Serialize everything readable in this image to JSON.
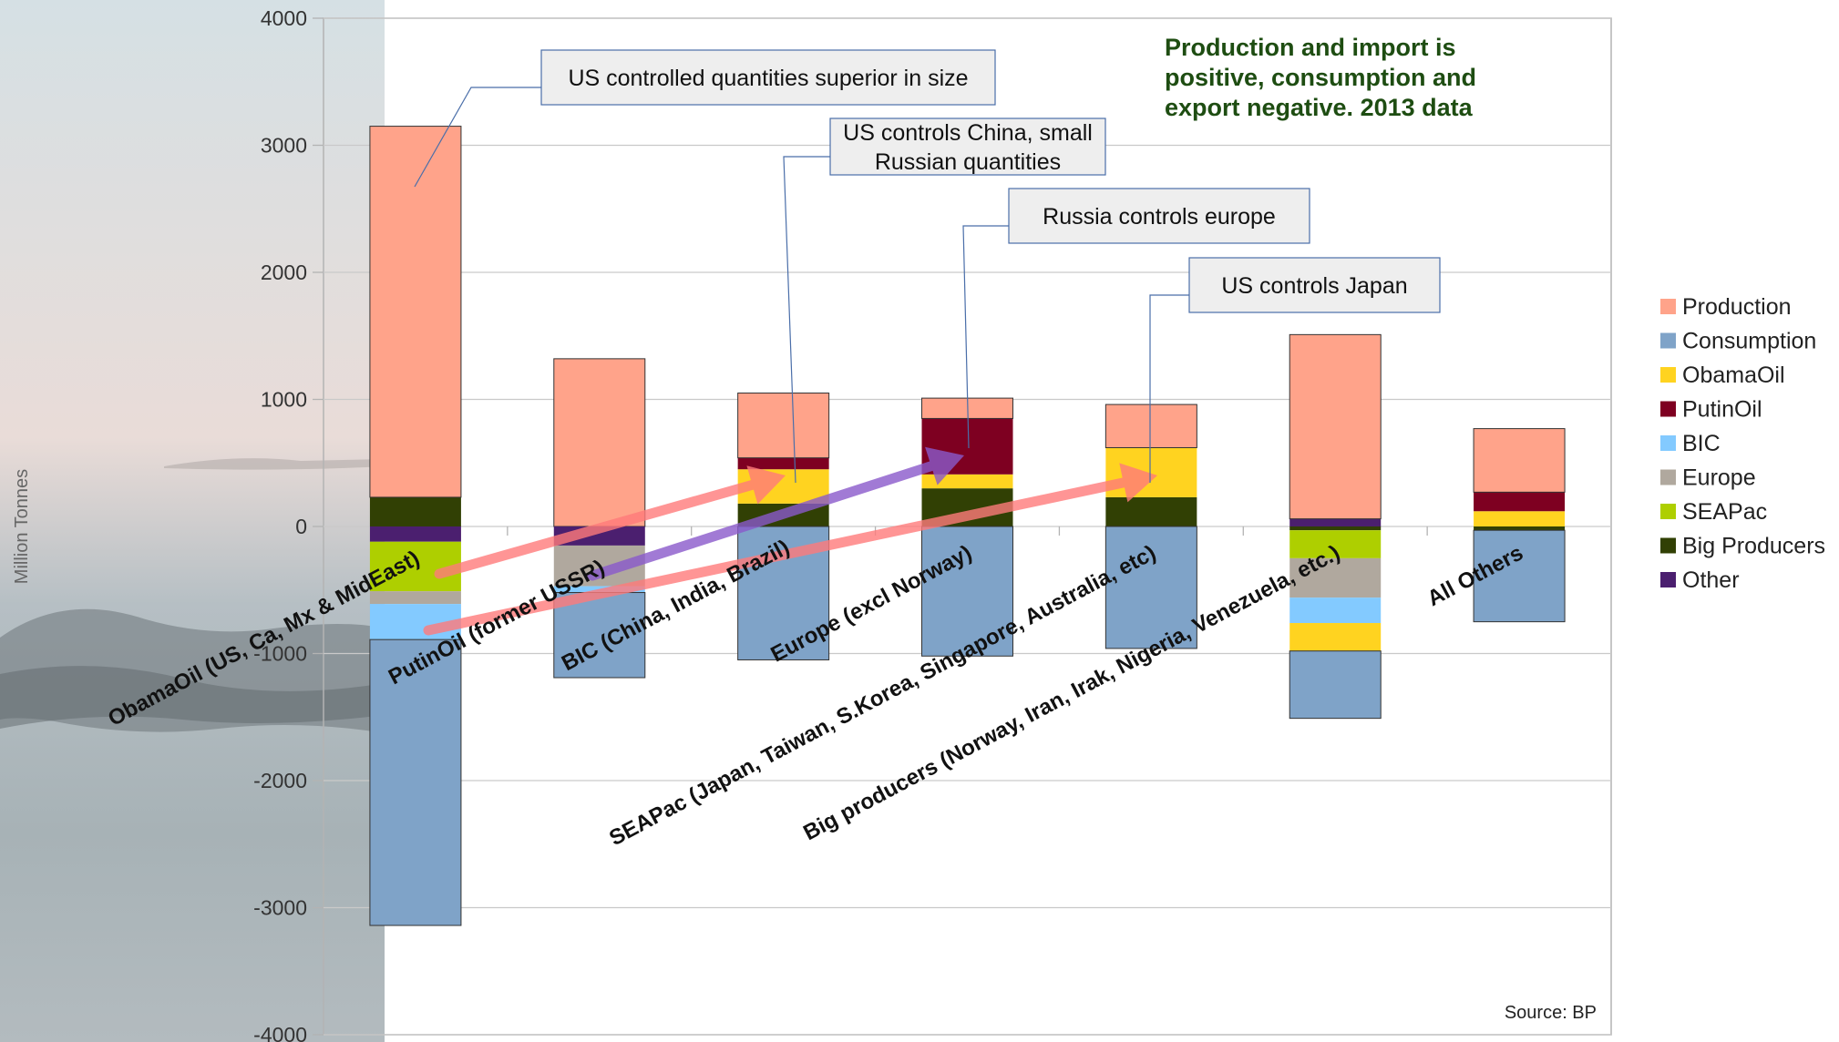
{
  "chart_data": {
    "type": "bar",
    "stacked": true,
    "ylabel": "Million Tonnes",
    "ylim": [
      -4000,
      4000
    ],
    "yticks": [
      -4000,
      -3000,
      -2000,
      -1000,
      0,
      1000,
      2000,
      3000,
      4000
    ],
    "grid": true,
    "legend_position": "right",
    "categories": [
      "ObamaOil (US, Ca, Mx & MidEast)",
      "PutinOil (former USSR)",
      "BIC (China, India, Brazil)",
      "Europe (excl Norway)",
      "SEAPac (Japan, Taiwan, S.Korea, Singapore, Australia, etc)",
      "Big producers (Norway, Iran, Irak, Nigeria, Venezuela, etc.)",
      "All Others"
    ],
    "series": [
      {
        "name": "Production",
        "color": "#ffa38a",
        "values": [
          2920,
          1320,
          510,
          160,
          340,
          1450,
          500
        ]
      },
      {
        "name": "Consumption",
        "color": "#7fa3c8",
        "values": [
          -2250,
          -670,
          -1050,
          -1020,
          -960,
          -530,
          -720
        ]
      },
      {
        "name": "ObamaOil",
        "color": "#ffd320",
        "values": [
          0,
          0,
          270,
          110,
          390,
          -220,
          120
        ]
      },
      {
        "name": "PutinOil",
        "color": "#7e0021",
        "values": [
          0,
          0,
          90,
          440,
          0,
          0,
          150
        ]
      },
      {
        "name": "BIC",
        "color": "#83caff",
        "values": [
          -280,
          -50,
          0,
          0,
          0,
          -200,
          0
        ]
      },
      {
        "name": "Europe",
        "color": "#b0a89e",
        "values": [
          -100,
          -320,
          0,
          0,
          0,
          -310,
          0
        ]
      },
      {
        "name": "SEAPac",
        "color": "#aecf00",
        "values": [
          -390,
          0,
          0,
          0,
          0,
          -220,
          0
        ]
      },
      {
        "name": "Big Producers",
        "color": "#314004",
        "values": [
          230,
          0,
          180,
          300,
          230,
          -30,
          -30
        ]
      },
      {
        "name": "Other",
        "color": "#4b1f6f",
        "values": [
          -120,
          -150,
          0,
          0,
          0,
          60,
          0
        ]
      }
    ],
    "annotations": [
      {
        "lines": [
          "US controlled quantities superior in size"
        ]
      },
      {
        "lines": [
          "US controls China, small",
          "Russian quantities"
        ]
      },
      {
        "lines": [
          "Russia controls europe"
        ]
      },
      {
        "lines": [
          "US controls Japan"
        ]
      }
    ],
    "note_lines": [
      "Production and import is",
      "positive, consumption and",
      "export negative. 2013 data"
    ],
    "source": "Source: BP"
  }
}
